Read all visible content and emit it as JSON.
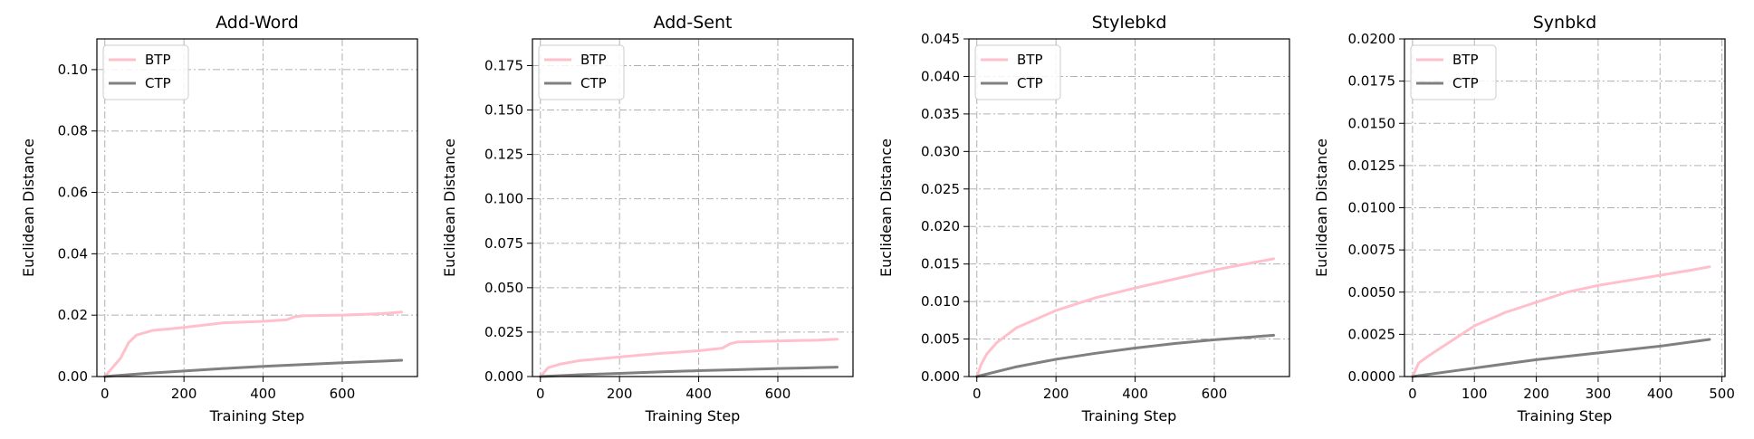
{
  "figure": {
    "background": "#ffffff"
  },
  "colors": {
    "BTP": "#FFC0CB",
    "CTP": "#808080",
    "grid": "#b0b0b0"
  },
  "chart_data": [
    {
      "type": "line",
      "title": "Add-Word",
      "xlabel": "Training Step",
      "ylabel": "Euclidean Distance",
      "xlim": [
        -20,
        790
      ],
      "ylim": [
        0,
        0.11
      ],
      "xticks": [
        0,
        200,
        400,
        600
      ],
      "xtick_labels": [
        "0",
        "200",
        "400",
        "600"
      ],
      "yticks": [
        0,
        0.02,
        0.04,
        0.06,
        0.08,
        0.1
      ],
      "ytick_labels": [
        "0.00",
        "0.02",
        "0.04",
        "0.06",
        "0.08",
        "0.10"
      ],
      "grid": true,
      "legend": "top-left",
      "series": [
        {
          "name": "BTP",
          "x": [
            0,
            20,
            40,
            60,
            80,
            120,
            200,
            300,
            400,
            460,
            480,
            500,
            600,
            700,
            750
          ],
          "y": [
            0.0,
            0.003,
            0.006,
            0.011,
            0.0135,
            0.015,
            0.016,
            0.0175,
            0.018,
            0.0185,
            0.0195,
            0.0198,
            0.02,
            0.0205,
            0.021
          ]
        },
        {
          "name": "CTP",
          "x": [
            0,
            100,
            200,
            300,
            400,
            500,
            600,
            700,
            750
          ],
          "y": [
            0.0,
            0.001,
            0.0018,
            0.0026,
            0.0033,
            0.0039,
            0.0045,
            0.005,
            0.0053
          ]
        }
      ]
    },
    {
      "type": "line",
      "title": "Add-Sent",
      "xlabel": "Training Step",
      "ylabel": "Euclidean Distance",
      "xlim": [
        -20,
        790
      ],
      "ylim": [
        0,
        0.19
      ],
      "xticks": [
        0,
        200,
        400,
        600
      ],
      "xtick_labels": [
        "0",
        "200",
        "400",
        "600"
      ],
      "yticks": [
        0,
        0.025,
        0.05,
        0.075,
        0.1,
        0.125,
        0.15,
        0.175
      ],
      "ytick_labels": [
        "0.000",
        "0.025",
        "0.050",
        "0.075",
        "0.100",
        "0.125",
        "0.150",
        "0.175"
      ],
      "grid": true,
      "legend": "top-left",
      "series": [
        {
          "name": "BTP",
          "x": [
            0,
            20,
            50,
            100,
            200,
            300,
            400,
            460,
            480,
            500,
            600,
            700,
            750
          ],
          "y": [
            0.0,
            0.005,
            0.007,
            0.009,
            0.011,
            0.013,
            0.0145,
            0.016,
            0.0185,
            0.0195,
            0.02,
            0.0205,
            0.021
          ]
        },
        {
          "name": "CTP",
          "x": [
            0,
            100,
            200,
            300,
            400,
            500,
            600,
            700,
            750
          ],
          "y": [
            0.0,
            0.001,
            0.0018,
            0.0026,
            0.0033,
            0.0039,
            0.0045,
            0.005,
            0.0053
          ]
        }
      ]
    },
    {
      "type": "line",
      "title": "Stylebkd",
      "xlabel": "Training Step",
      "ylabel": "Euclidean Distance",
      "xlim": [
        -20,
        790
      ],
      "ylim": [
        0,
        0.045
      ],
      "xticks": [
        0,
        200,
        400,
        600
      ],
      "xtick_labels": [
        "0",
        "200",
        "400",
        "600"
      ],
      "yticks": [
        0,
        0.005,
        0.01,
        0.015,
        0.02,
        0.025,
        0.03,
        0.035,
        0.04,
        0.045
      ],
      "ytick_labels": [
        "0.000",
        "0.005",
        "0.010",
        "0.015",
        "0.020",
        "0.025",
        "0.030",
        "0.035",
        "0.040",
        "0.045"
      ],
      "grid": true,
      "legend": "top-left",
      "series": [
        {
          "name": "BTP",
          "x": [
            0,
            10,
            25,
            50,
            100,
            200,
            300,
            400,
            500,
            600,
            700,
            750
          ],
          "y": [
            0.0,
            0.0015,
            0.003,
            0.0045,
            0.0065,
            0.0088,
            0.0105,
            0.0118,
            0.013,
            0.0142,
            0.0152,
            0.0157
          ]
        },
        {
          "name": "CTP",
          "x": [
            0,
            100,
            200,
            300,
            400,
            500,
            600,
            700,
            750
          ],
          "y": [
            0.0,
            0.0013,
            0.0023,
            0.0031,
            0.0038,
            0.0044,
            0.0049,
            0.0053,
            0.0055
          ]
        }
      ]
    },
    {
      "type": "line",
      "title": "Synbkd",
      "xlabel": "Training Step",
      "ylabel": "Euclidean Distance",
      "xlim": [
        -13,
        505
      ],
      "ylim": [
        0,
        0.02
      ],
      "xticks": [
        0,
        100,
        200,
        300,
        400,
        500
      ],
      "xtick_labels": [
        "0",
        "100",
        "200",
        "300",
        "400",
        "500"
      ],
      "yticks": [
        0,
        0.0025,
        0.005,
        0.0075,
        0.01,
        0.0125,
        0.015,
        0.0175,
        0.02
      ],
      "ytick_labels": [
        "0.0000",
        "0.0025",
        "0.0050",
        "0.0075",
        "0.0100",
        "0.0125",
        "0.0150",
        "0.0175",
        "0.0200"
      ],
      "grid": true,
      "legend": "top-left",
      "series": [
        {
          "name": "BTP",
          "x": [
            0,
            10,
            25,
            50,
            100,
            150,
            200,
            250,
            300,
            350,
            400,
            450,
            480
          ],
          "y": [
            0.0,
            0.0008,
            0.0012,
            0.0018,
            0.003,
            0.0038,
            0.0044,
            0.005,
            0.0054,
            0.0057,
            0.006,
            0.0063,
            0.0065
          ]
        },
        {
          "name": "CTP",
          "x": [
            0,
            100,
            200,
            300,
            400,
            480
          ],
          "y": [
            0.0,
            0.0005,
            0.001,
            0.0014,
            0.0018,
            0.0022
          ]
        }
      ]
    }
  ]
}
